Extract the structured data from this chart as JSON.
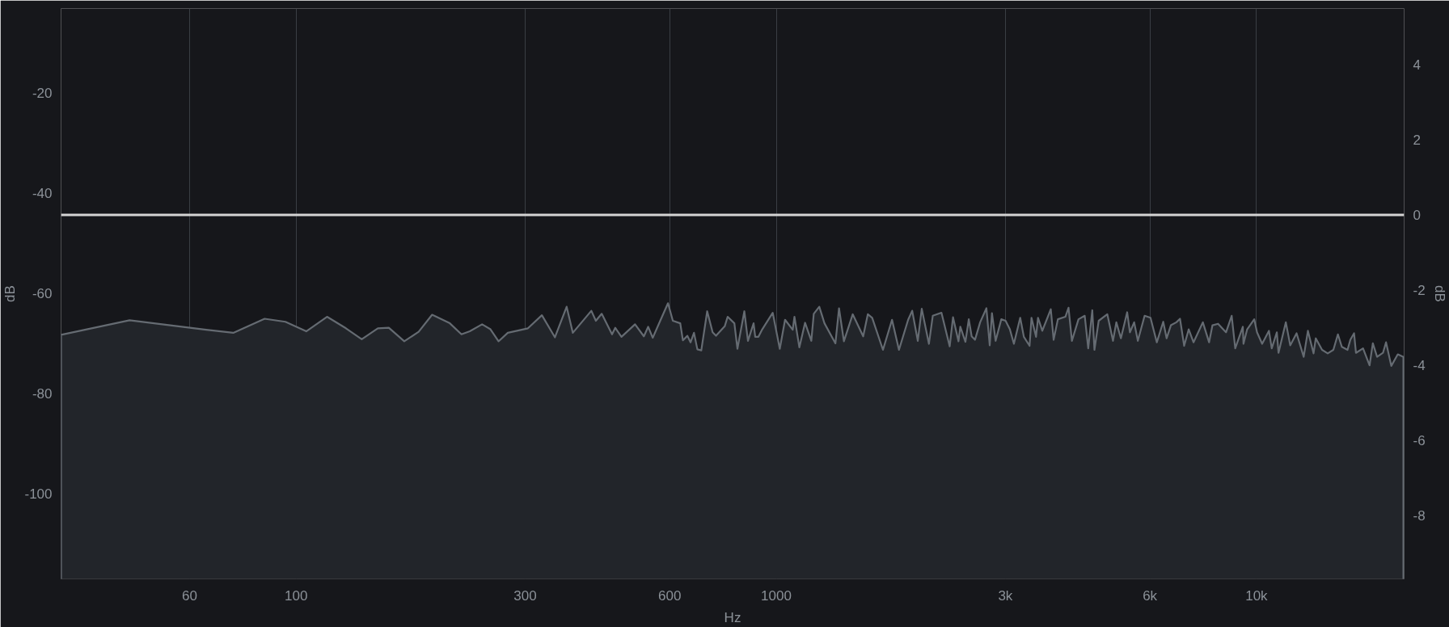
{
  "chart_data": {
    "type": "area",
    "xlabel": "Hz",
    "ylabel": "dB",
    "y2label": "dB",
    "log": "x",
    "grid": "x",
    "xlim": [
      32.4,
      20300
    ],
    "xticks": [
      60,
      100,
      300,
      600,
      1000,
      {
        "value": 3000,
        "label": "3k"
      },
      {
        "value": 6000,
        "label": "6k"
      },
      {
        "value": 10000,
        "label": "10k"
      }
    ],
    "ylim": [
      -117,
      -3.2
    ],
    "yticks": [
      -100,
      -80,
      -60,
      -40,
      -20
    ],
    "y2lim": [
      -9.7,
      5.5
    ],
    "y2ticks": [
      -8,
      -6,
      -4,
      -2,
      0,
      2,
      4
    ],
    "ref_lines": [
      {
        "axis": "y2",
        "value": 0,
        "color": "#d4d4d4"
      }
    ],
    "x": [
      32.4,
      45,
      65,
      74,
      86,
      95,
      105,
      116,
      127,
      137,
      148,
      156,
      168,
      180,
      192,
      209,
      221,
      230,
      244,
      254,
      264,
      276,
      304,
      325,
      346,
      366,
      377,
      412,
      421,
      433,
      455,
      462,
      476,
      508,
      530,
      541,
      553,
      572,
      595,
      609,
      631,
      639,
      653,
      663,
      674,
      685,
      698,
      718,
      737,
      749,
      781,
      792,
      818,
      830,
      858,
      873,
      897,
      904,
      918,
      935,
      983,
      1017,
      1043,
      1082,
      1091,
      1117,
      1148,
      1183,
      1197,
      1229,
      1260,
      1328,
      1351,
      1383,
      1443,
      1517,
      1551,
      1584,
      1668,
      1742,
      1801,
      1882,
      1919,
      1971,
      2009,
      2079,
      2118,
      2208,
      2297,
      2334,
      2396,
      2417,
      2477,
      2517,
      2552,
      2593,
      2658,
      2739,
      2783,
      2813,
      2863,
      2942,
      3003,
      3065,
      3125,
      3221,
      3278,
      3369,
      3400,
      3475,
      3508,
      3581,
      3730,
      3781,
      3859,
      4000,
      4061,
      4127,
      4260,
      4389,
      4463,
      4551,
      4598,
      4693,
      4891,
      5026,
      5107,
      5220,
      5379,
      5451,
      5563,
      5662,
      5849,
      6016,
      6202,
      6395,
      6500,
      6634,
      6811,
      6930,
      7070,
      7226,
      7394,
      7733,
      7967,
      8098,
      8318,
      8641,
      8880,
      9032,
      9368,
      9396,
      9564,
      9894,
      10027,
      10276,
      10616,
      10760,
      11026,
      11115,
      11513,
      11757,
      12122,
      12541,
      12798,
      13148,
      13291,
      13697,
      14072,
      14459,
      14777,
      15058,
      15474,
      15686,
      15968,
      16114,
      16670,
      17199,
      17472,
      17833,
      18343,
      18615,
      19088,
      19693,
      20230
    ],
    "series": [
      {
        "color": "#656b72",
        "values": [
          -68.3,
          -65.4,
          -67.3,
          -67.9,
          -65.1,
          -65.7,
          -67.6,
          -64.7,
          -67.0,
          -69.2,
          -67.0,
          -66.9,
          -69.6,
          -67.7,
          -64.3,
          -66.0,
          -68.2,
          -67.6,
          -66.2,
          -67.2,
          -69.6,
          -67.9,
          -67.0,
          -64.4,
          -68.8,
          -62.7,
          -67.9,
          -63.5,
          -65.5,
          -64.1,
          -68.2,
          -66.9,
          -68.7,
          -66.2,
          -68.6,
          -66.7,
          -68.9,
          -65.7,
          -62.0,
          -65.5,
          -66.0,
          -69.4,
          -68.5,
          -69.8,
          -67.9,
          -71.2,
          -71.4,
          -63.6,
          -67.8,
          -68.5,
          -66.6,
          -64.7,
          -66.0,
          -71.1,
          -63.6,
          -69.5,
          -66.0,
          -68.7,
          -68.7,
          -67.2,
          -63.9,
          -71.1,
          -65.3,
          -67.3,
          -64.7,
          -70.8,
          -65.9,
          -69.5,
          -64.1,
          -62.7,
          -66.0,
          -70.0,
          -63.0,
          -69.6,
          -64.2,
          -68.6,
          -64.2,
          -64.9,
          -71.3,
          -65.3,
          -71.3,
          -65.3,
          -63.5,
          -69.5,
          -63.1,
          -70.1,
          -64.5,
          -63.9,
          -70.6,
          -64.8,
          -69.6,
          -66.7,
          -69.7,
          -65.2,
          -68.6,
          -69.3,
          -65.8,
          -63.0,
          -70.4,
          -64.0,
          -69.5,
          -65.2,
          -65.5,
          -67.2,
          -70.1,
          -64.9,
          -68.7,
          -70.5,
          -64.9,
          -68.7,
          -64.9,
          -67.5,
          -63.2,
          -69.3,
          -65.2,
          -64.7,
          -62.9,
          -69.5,
          -65.2,
          -64.5,
          -71.0,
          -63.4,
          -71.3,
          -65.5,
          -64.2,
          -69.5,
          -65.8,
          -69.0,
          -63.8,
          -67.8,
          -65.8,
          -69.5,
          -64.5,
          -64.9,
          -69.8,
          -65.7,
          -69.0,
          -66.4,
          -65.8,
          -65.1,
          -70.5,
          -67.2,
          -69.8,
          -65.8,
          -69.8,
          -66.4,
          -66.1,
          -67.8,
          -64.5,
          -71.0,
          -66.7,
          -70.1,
          -67.2,
          -65.2,
          -67.8,
          -70.1,
          -67.5,
          -71.0,
          -67.8,
          -71.9,
          -65.8,
          -70.4,
          -68.0,
          -72.7,
          -67.5,
          -72.0,
          -69.0,
          -71.3,
          -72.0,
          -71.3,
          -68.2,
          -70.7,
          -71.3,
          -69.3,
          -68.0,
          -71.9,
          -71.0,
          -74.4,
          -70.0,
          -72.7,
          -71.9,
          -69.8,
          -74.5,
          -72.2,
          -72.7
        ]
      }
    ]
  }
}
